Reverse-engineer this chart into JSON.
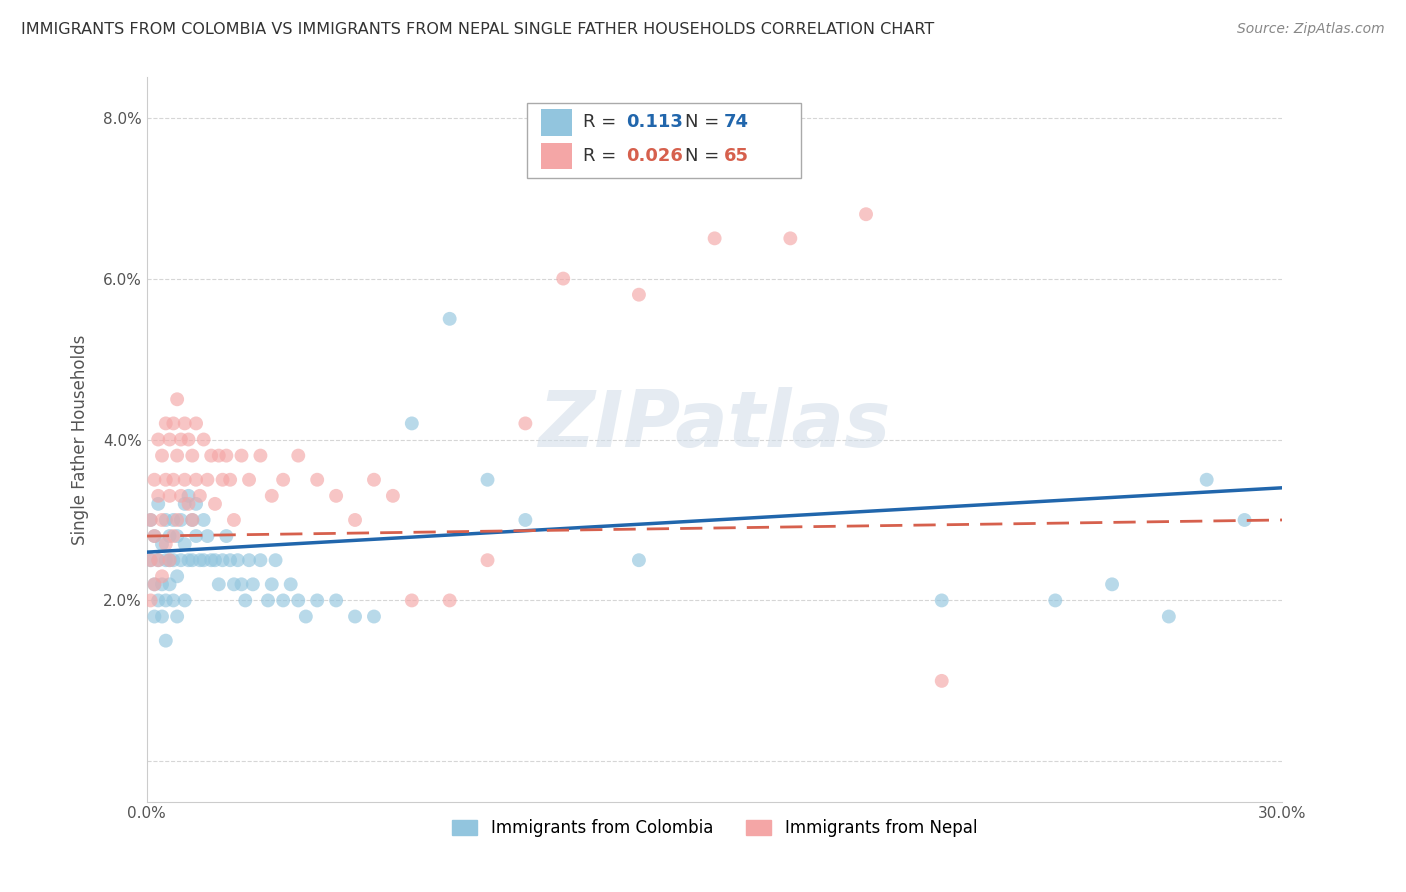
{
  "title": "IMMIGRANTS FROM COLOMBIA VS IMMIGRANTS FROM NEPAL SINGLE FATHER HOUSEHOLDS CORRELATION CHART",
  "source": "Source: ZipAtlas.com",
  "ylabel": "Single Father Households",
  "x_min": 0.0,
  "x_max": 0.3,
  "y_min": -0.005,
  "y_max": 0.085,
  "x_ticks": [
    0.0,
    0.05,
    0.1,
    0.15,
    0.2,
    0.25,
    0.3
  ],
  "x_tick_labels": [
    "0.0%",
    "",
    "",
    "",
    "",
    "",
    "30.0%"
  ],
  "y_ticks": [
    0.0,
    0.02,
    0.04,
    0.06,
    0.08
  ],
  "y_tick_labels": [
    "",
    "2.0%",
    "4.0%",
    "6.0%",
    "8.0%"
  ],
  "colombia_color": "#92c5de",
  "nepal_color": "#f4a6a6",
  "colombia_line_color": "#2166ac",
  "nepal_line_color": "#d6604d",
  "r_colombia": 0.113,
  "n_colombia": 74,
  "r_nepal": 0.026,
  "n_nepal": 65,
  "legend_label_colombia": "Immigrants from Colombia",
  "legend_label_nepal": "Immigrants from Nepal",
  "watermark": "ZIPatlas",
  "colombia_scatter_x": [
    0.001,
    0.001,
    0.002,
    0.002,
    0.002,
    0.003,
    0.003,
    0.003,
    0.004,
    0.004,
    0.004,
    0.005,
    0.005,
    0.005,
    0.005,
    0.006,
    0.006,
    0.006,
    0.007,
    0.007,
    0.007,
    0.008,
    0.008,
    0.008,
    0.009,
    0.009,
    0.01,
    0.01,
    0.01,
    0.011,
    0.011,
    0.012,
    0.012,
    0.013,
    0.013,
    0.014,
    0.015,
    0.015,
    0.016,
    0.017,
    0.018,
    0.019,
    0.02,
    0.021,
    0.022,
    0.023,
    0.024,
    0.025,
    0.026,
    0.027,
    0.028,
    0.03,
    0.032,
    0.033,
    0.034,
    0.036,
    0.038,
    0.04,
    0.042,
    0.045,
    0.05,
    0.055,
    0.06,
    0.07,
    0.08,
    0.09,
    0.1,
    0.13,
    0.21,
    0.24,
    0.255,
    0.27,
    0.28,
    0.29
  ],
  "colombia_scatter_y": [
    0.03,
    0.025,
    0.028,
    0.022,
    0.018,
    0.032,
    0.025,
    0.02,
    0.027,
    0.022,
    0.018,
    0.03,
    0.025,
    0.02,
    0.015,
    0.028,
    0.025,
    0.022,
    0.03,
    0.025,
    0.02,
    0.028,
    0.023,
    0.018,
    0.03,
    0.025,
    0.032,
    0.027,
    0.02,
    0.033,
    0.025,
    0.03,
    0.025,
    0.032,
    0.028,
    0.025,
    0.03,
    0.025,
    0.028,
    0.025,
    0.025,
    0.022,
    0.025,
    0.028,
    0.025,
    0.022,
    0.025,
    0.022,
    0.02,
    0.025,
    0.022,
    0.025,
    0.02,
    0.022,
    0.025,
    0.02,
    0.022,
    0.02,
    0.018,
    0.02,
    0.02,
    0.018,
    0.018,
    0.042,
    0.055,
    0.035,
    0.03,
    0.025,
    0.02,
    0.02,
    0.022,
    0.018,
    0.035,
    0.03
  ],
  "nepal_scatter_x": [
    0.001,
    0.001,
    0.001,
    0.002,
    0.002,
    0.002,
    0.003,
    0.003,
    0.003,
    0.004,
    0.004,
    0.004,
    0.005,
    0.005,
    0.005,
    0.006,
    0.006,
    0.006,
    0.007,
    0.007,
    0.007,
    0.008,
    0.008,
    0.008,
    0.009,
    0.009,
    0.01,
    0.01,
    0.011,
    0.011,
    0.012,
    0.012,
    0.013,
    0.013,
    0.014,
    0.015,
    0.016,
    0.017,
    0.018,
    0.019,
    0.02,
    0.021,
    0.022,
    0.023,
    0.025,
    0.027,
    0.03,
    0.033,
    0.036,
    0.04,
    0.045,
    0.05,
    0.055,
    0.06,
    0.065,
    0.07,
    0.08,
    0.09,
    0.1,
    0.11,
    0.13,
    0.15,
    0.17,
    0.19,
    0.21
  ],
  "nepal_scatter_y": [
    0.03,
    0.025,
    0.02,
    0.035,
    0.028,
    0.022,
    0.04,
    0.033,
    0.025,
    0.038,
    0.03,
    0.023,
    0.042,
    0.035,
    0.027,
    0.04,
    0.033,
    0.025,
    0.042,
    0.035,
    0.028,
    0.045,
    0.038,
    0.03,
    0.04,
    0.033,
    0.042,
    0.035,
    0.04,
    0.032,
    0.038,
    0.03,
    0.042,
    0.035,
    0.033,
    0.04,
    0.035,
    0.038,
    0.032,
    0.038,
    0.035,
    0.038,
    0.035,
    0.03,
    0.038,
    0.035,
    0.038,
    0.033,
    0.035,
    0.038,
    0.035,
    0.033,
    0.03,
    0.035,
    0.033,
    0.02,
    0.02,
    0.025,
    0.042,
    0.06,
    0.058,
    0.065,
    0.065,
    0.068,
    0.01
  ]
}
